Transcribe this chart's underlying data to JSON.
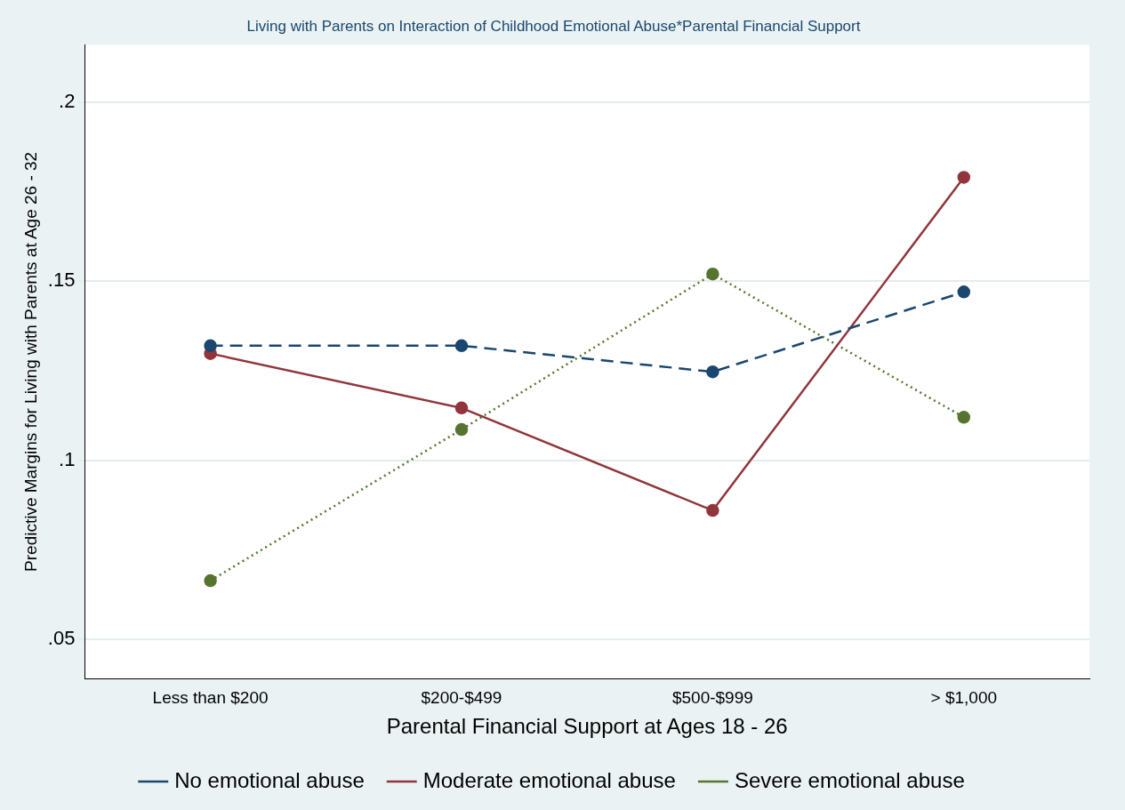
{
  "chart_data": {
    "type": "line",
    "title": "Living with Parents on Interaction of Childhood Emotional Abuse*Parental Financial Support",
    "xlabel": "Parental Financial Support at Ages 18 - 26",
    "ylabel": "Predictive Margins for Living with Parents at Age 26 - 32",
    "categories": [
      "Less than $200",
      "$200-$499",
      "$500-$999",
      "> $1,000"
    ],
    "series": [
      {
        "name": "No emotional abuse",
        "color": "#1a476f",
        "line_style": "dashed",
        "values": [
          0.132,
          0.132,
          0.1247,
          0.147
        ]
      },
      {
        "name": "Moderate emotional abuse",
        "color": "#90353b",
        "line_style": "solid",
        "values": [
          0.1298,
          0.1146,
          0.086,
          0.179
        ]
      },
      {
        "name": "Severe emotional abuse",
        "color": "#55752f",
        "line_style": "dotted",
        "values": [
          0.0664,
          0.1086,
          0.152,
          0.112
        ]
      }
    ],
    "ylim": [
      0.039,
      0.216
    ],
    "yticks": [
      {
        "value": 0.05,
        "label": ".05"
      },
      {
        "value": 0.1,
        "label": ".1"
      },
      {
        "value": 0.15,
        "label": ".15"
      },
      {
        "value": 0.2,
        "label": ".2"
      }
    ],
    "grid": "y",
    "legend": "bottom",
    "marker": "circle"
  }
}
